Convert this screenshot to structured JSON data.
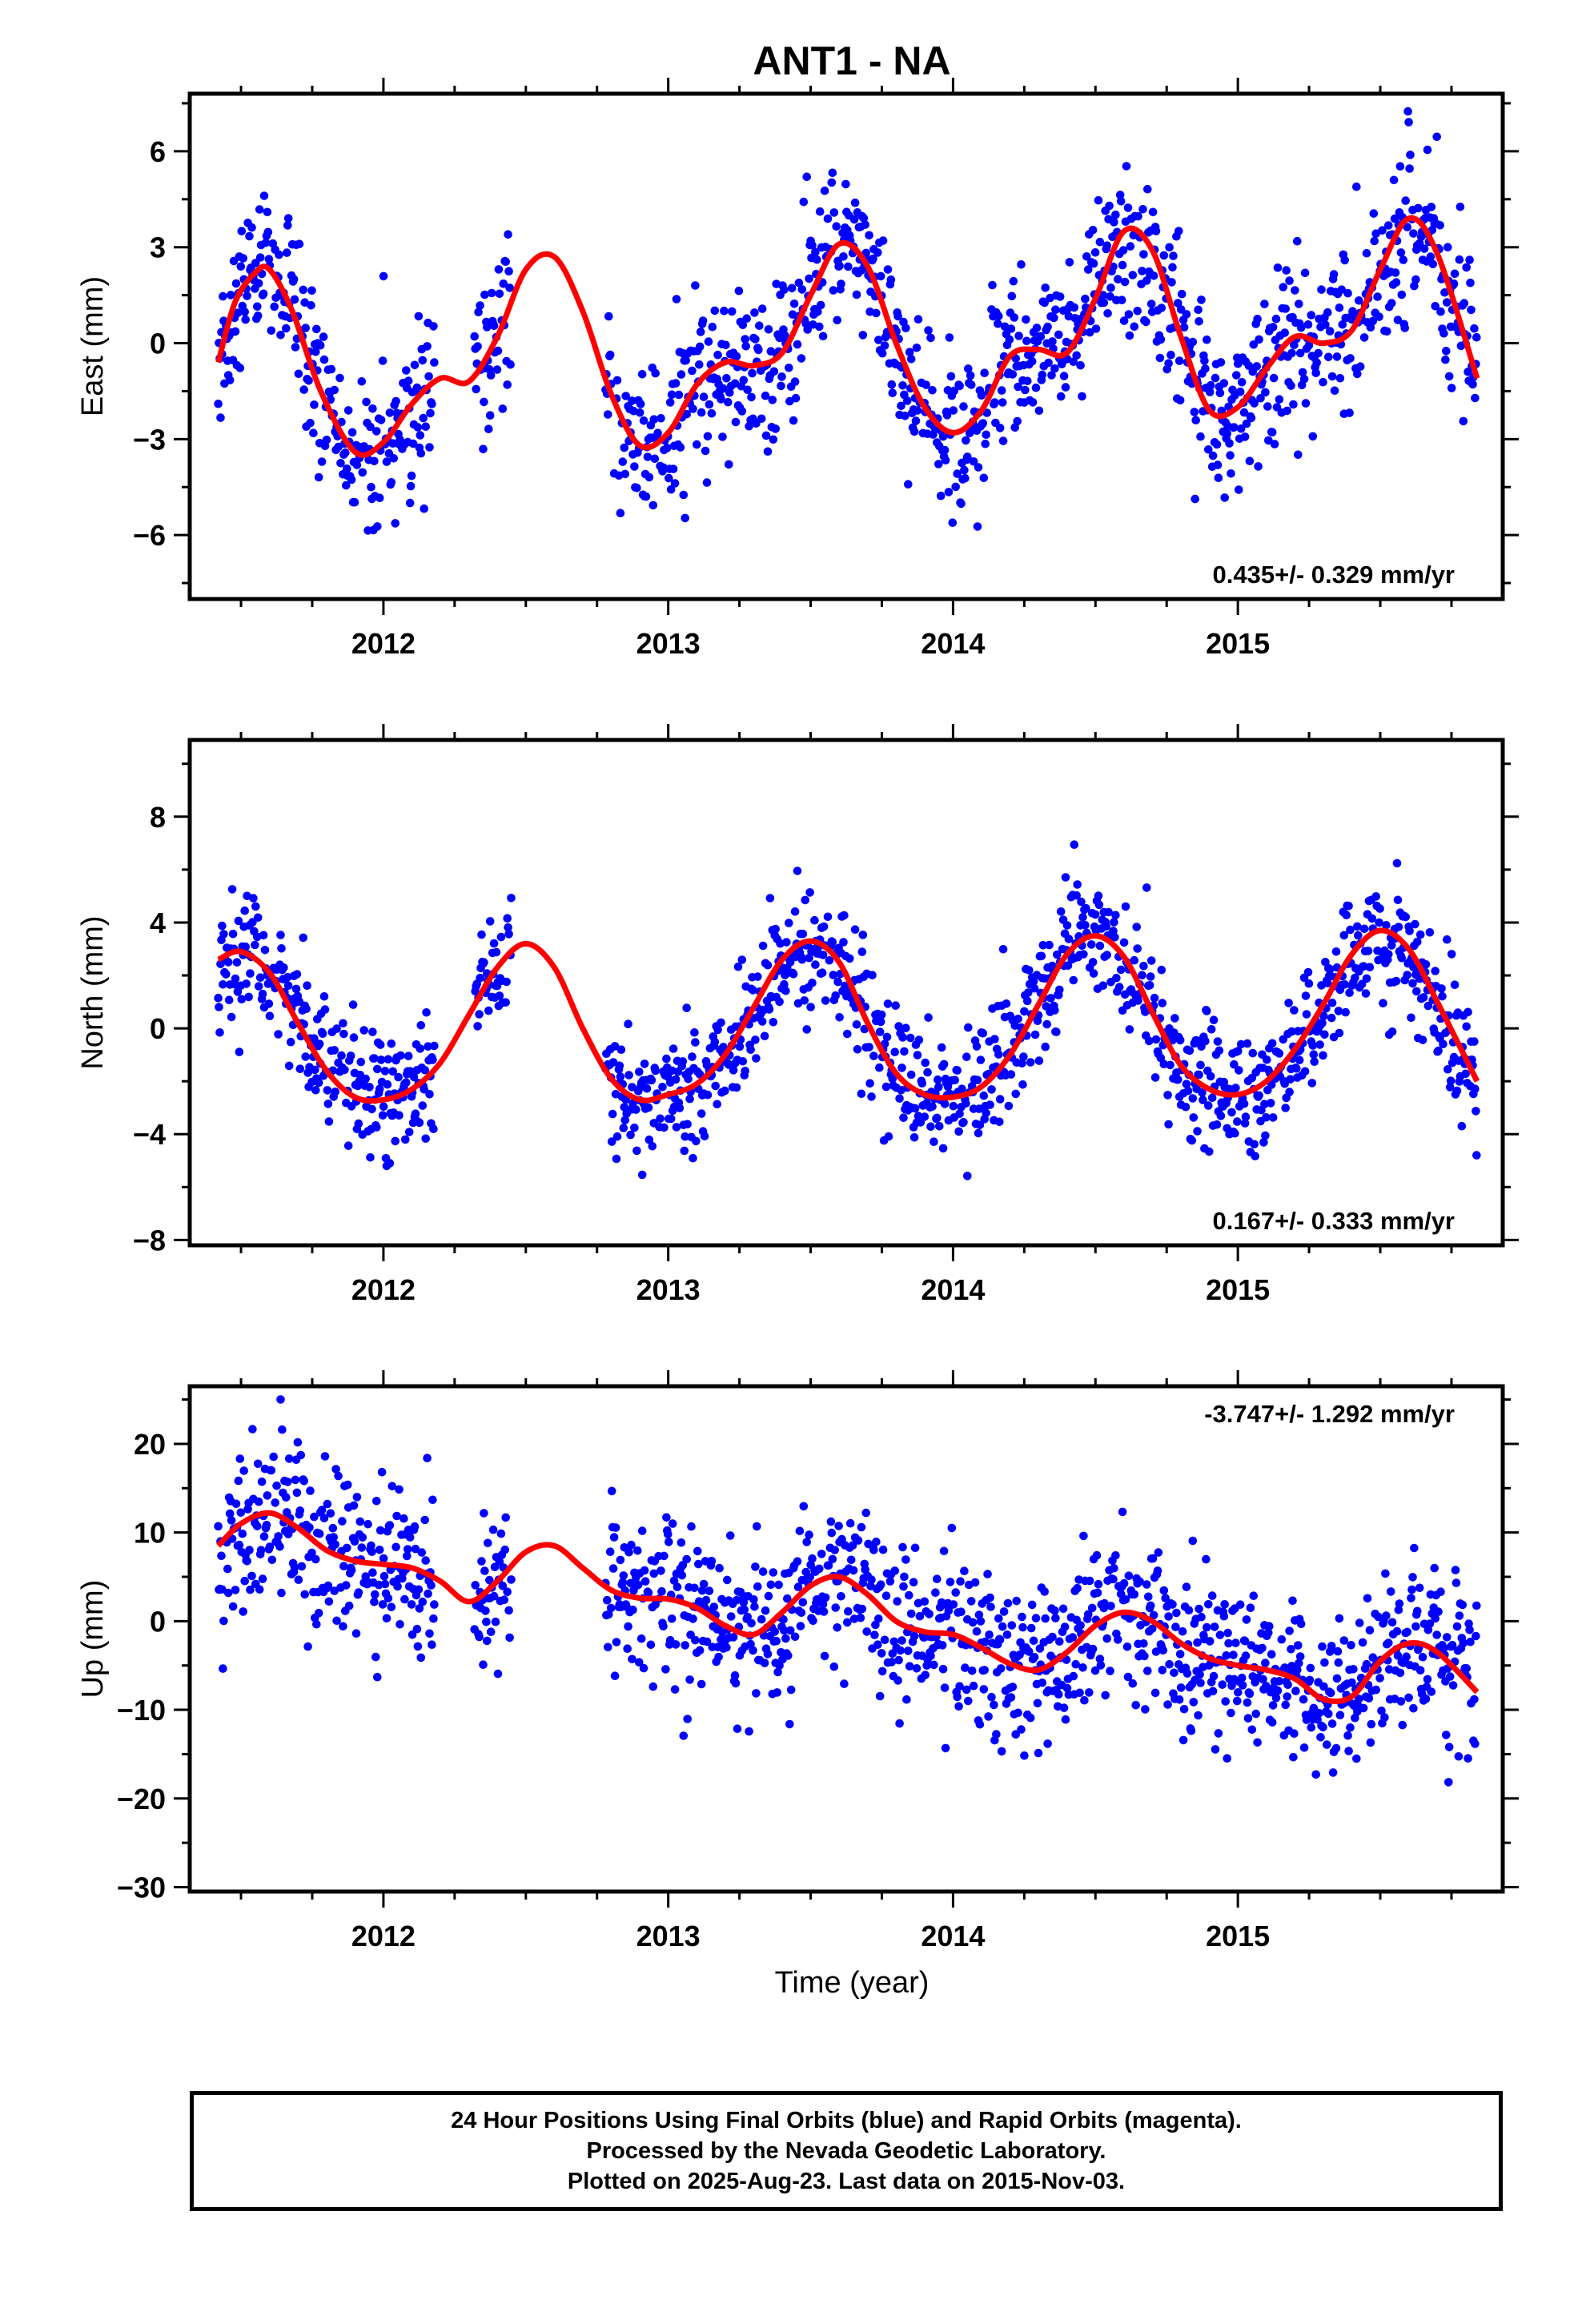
{
  "title": "ANT1 - NA",
  "xlabel": "Time (year)",
  "colors": {
    "data": "#0000ff",
    "fit": "#ff0000",
    "axis": "#000000"
  },
  "footer": {
    "line1": "24 Hour Positions Using Final Orbits (blue) and Rapid Orbits (magenta).",
    "line2": "Processed by the Nevada Geodetic Laboratory.",
    "line3": "Plotted on 2025-Aug-23. Last data on 2015-Nov-03."
  },
  "chart_data": [
    {
      "type": "scatter",
      "title": "ANT1 - NA",
      "ylabel": "East (mm)",
      "xlabel": "",
      "xlim": [
        2011.32,
        2015.93
      ],
      "ylim": [
        -8,
        7.8
      ],
      "xticks": [
        2012,
        2013,
        2014,
        2015
      ],
      "xtick_labels": [
        "2012",
        "2013",
        "2014",
        "2015"
      ],
      "yticks": [
        -6,
        -3,
        0,
        3,
        6
      ],
      "ytick_labels": [
        "−6",
        "−3",
        "0",
        "3",
        "6"
      ],
      "rate": "0.435+/- 0.329 mm/yr",
      "series": [
        {
          "kind": "points",
          "color": "#0000ff",
          "segments": [
            [
              2011.42,
              2012.18
            ],
            [
              2012.32,
              2012.45
            ],
            [
              2012.78,
              2015.84
            ]
          ],
          "amplitude": 3.0,
          "offset": -0.3,
          "trend": 0.435,
          "noise": 1.25
        },
        {
          "kind": "fit",
          "color": "#ff0000",
          "x": [
            2011.42,
            2011.48,
            2011.55,
            2011.6,
            2011.68,
            2011.78,
            2011.9,
            2012.0,
            2012.1,
            2012.2,
            2012.3,
            2012.4,
            2012.5,
            2012.6,
            2012.7,
            2012.8,
            2012.9,
            2013.0,
            2013.1,
            2013.2,
            2013.3,
            2013.4,
            2013.5,
            2013.6,
            2013.7,
            2013.8,
            2013.9,
            2014.0,
            2014.1,
            2014.2,
            2014.3,
            2014.4,
            2014.5,
            2014.6,
            2014.7,
            2014.8,
            2014.9,
            2015.0,
            2015.1,
            2015.2,
            2015.3,
            2015.4,
            2015.5,
            2015.6,
            2015.7,
            2015.84
          ],
          "y": [
            -0.6,
            1.3,
            2.2,
            2.3,
            1.0,
            -1.5,
            -3.4,
            -3.1,
            -1.9,
            -1.1,
            -1.2,
            0.2,
            2.3,
            2.7,
            1.0,
            -1.6,
            -3.2,
            -2.8,
            -1.3,
            -0.6,
            -0.7,
            -0.3,
            1.5,
            3.1,
            2.4,
            0.0,
            -2.0,
            -2.8,
            -2.1,
            -0.4,
            -0.2,
            -0.3,
            1.4,
            3.5,
            2.9,
            0.2,
            -2.1,
            -2.0,
            -0.8,
            0.2,
            0.0,
            0.4,
            2.3,
            3.9,
            2.8,
            -1.1
          ]
        }
      ]
    },
    {
      "type": "scatter",
      "ylabel": "North (mm)",
      "xlabel": "",
      "xlim": [
        2011.32,
        2015.93
      ],
      "ylim": [
        -8.2,
        10.9
      ],
      "xticks": [
        2012,
        2013,
        2014,
        2015
      ],
      "xtick_labels": [
        "2012",
        "2013",
        "2014",
        "2015"
      ],
      "yticks": [
        -8,
        -4,
        0,
        4,
        8
      ],
      "ytick_labels": [
        "−8",
        "−4",
        "0",
        "4",
        "8"
      ],
      "rate": "0.167+/- 0.333 mm/yr",
      "series": [
        {
          "kind": "points",
          "color": "#0000ff",
          "segments": [
            [
              2011.42,
              2012.18
            ],
            [
              2012.32,
              2012.45
            ],
            [
              2012.78,
              2015.84
            ]
          ],
          "amplitude": 3.0,
          "offset": 0.0,
          "trend": 0.167,
          "noise": 1.2
        },
        {
          "kind": "fit",
          "color": "#ff0000",
          "x": [
            2011.42,
            2011.5,
            2011.6,
            2011.7,
            2011.8,
            2011.9,
            2012.0,
            2012.1,
            2012.2,
            2012.3,
            2012.4,
            2012.5,
            2012.6,
            2012.7,
            2012.8,
            2012.9,
            2013.0,
            2013.1,
            2013.2,
            2013.3,
            2013.4,
            2013.5,
            2013.6,
            2013.7,
            2013.8,
            2013.9,
            2014.0,
            2014.1,
            2014.2,
            2014.3,
            2014.4,
            2014.5,
            2014.6,
            2014.7,
            2014.8,
            2014.9,
            2015.0,
            2015.1,
            2015.2,
            2015.3,
            2015.4,
            2015.5,
            2015.6,
            2015.7,
            2015.84
          ],
          "y": [
            2.6,
            2.9,
            2.1,
            0.2,
            -1.6,
            -2.6,
            -2.7,
            -2.3,
            -1.3,
            0.5,
            2.3,
            3.2,
            2.3,
            0.0,
            -1.9,
            -2.7,
            -2.5,
            -2.1,
            -1.0,
            0.8,
            2.6,
            3.3,
            2.5,
            0.2,
            -1.7,
            -2.5,
            -2.6,
            -2.2,
            -1.0,
            0.9,
            2.8,
            3.5,
            2.7,
            0.6,
            -1.4,
            -2.3,
            -2.5,
            -2.0,
            -0.8,
            0.9,
            2.8,
            3.7,
            3.0,
            1.0,
            -2.0
          ]
        }
      ]
    },
    {
      "type": "scatter",
      "ylabel": "Up (mm)",
      "xlabel": "Time (year)",
      "xlim": [
        2011.32,
        2015.93
      ],
      "ylim": [
        -30.5,
        26.5
      ],
      "xticks": [
        2012,
        2013,
        2014,
        2015
      ],
      "xtick_labels": [
        "2012",
        "2013",
        "2014",
        "2015"
      ],
      "yticks": [
        -30,
        -20,
        -10,
        0,
        10,
        20
      ],
      "ytick_labels": [
        "−30",
        "−20",
        "−10",
        "0",
        "10",
        "20"
      ],
      "rate": "-3.747+/- 1.292 mm/yr",
      "series": [
        {
          "kind": "points",
          "color": "#0000ff",
          "segments": [
            [
              2011.42,
              2012.18
            ],
            [
              2012.32,
              2012.45
            ],
            [
              2012.78,
              2015.84
            ]
          ],
          "amplitude": 3.0,
          "offset": 8.5,
          "trend": -3.747,
          "noise": 4.6
        },
        {
          "kind": "fit",
          "color": "#ff0000",
          "x": [
            2011.42,
            2011.5,
            2011.6,
            2011.7,
            2011.8,
            2011.9,
            2012.0,
            2012.1,
            2012.2,
            2012.3,
            2012.4,
            2012.5,
            2012.6,
            2012.7,
            2012.8,
            2012.9,
            2013.0,
            2013.1,
            2013.2,
            2013.3,
            2013.4,
            2013.5,
            2013.6,
            2013.7,
            2013.8,
            2013.9,
            2014.0,
            2014.1,
            2014.2,
            2014.3,
            2014.4,
            2014.5,
            2014.6,
            2014.7,
            2014.8,
            2014.9,
            2015.0,
            2015.1,
            2015.2,
            2015.3,
            2015.4,
            2015.5,
            2015.6,
            2015.7,
            2015.84
          ],
          "y": [
            8.5,
            11.0,
            12.2,
            10.5,
            8.0,
            6.8,
            6.4,
            6.0,
            4.5,
            2.2,
            4.5,
            7.8,
            8.5,
            6.0,
            3.5,
            2.6,
            2.5,
            1.5,
            -0.5,
            -1.5,
            1.0,
            4.0,
            5.0,
            3.0,
            0.0,
            -1.2,
            -1.5,
            -3.0,
            -4.8,
            -5.5,
            -3.5,
            -0.5,
            1.0,
            0.0,
            -2.5,
            -4.2,
            -5.0,
            -5.5,
            -6.5,
            -8.8,
            -8.5,
            -4.5,
            -2.5,
            -3.5,
            -8.0
          ]
        }
      ]
    }
  ]
}
